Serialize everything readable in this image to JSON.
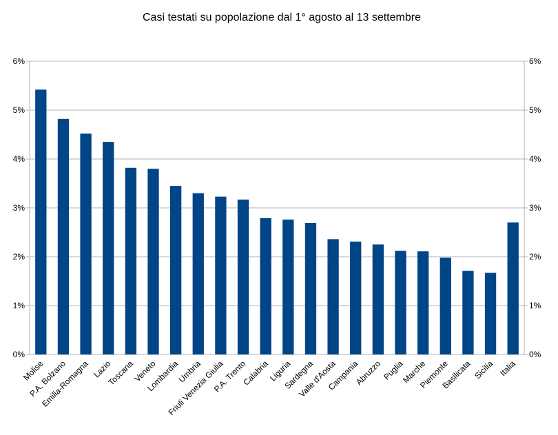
{
  "chart_data": {
    "type": "bar",
    "title": "Casi testati su popolazione dal 1° agosto al 13 settembre",
    "xlabel": "",
    "ylabel": "",
    "ylim": [
      0,
      6
    ],
    "y_tick_step": 1,
    "y_tick_suffix": "%",
    "secondary_y_axis": true,
    "grid": true,
    "legend": "none",
    "bar_color": "#004586",
    "categories": [
      "Molise",
      "P.A. Bolzano",
      "Emilia-Romagna",
      "Lazio",
      "Toscana",
      "Veneto",
      "Lombardia",
      "Umbria",
      "Friuli Venezia Giulia",
      "P.A. Trento",
      "Calabria",
      "Liguria",
      "Sardegna",
      "Valle d'Aosta",
      "Campania",
      "Abruzzo",
      "Puglia",
      "Marche",
      "Piemonte",
      "Basilicata",
      "Sicilia",
      "Italia"
    ],
    "values": [
      5.42,
      4.82,
      4.52,
      4.35,
      3.82,
      3.8,
      3.45,
      3.3,
      3.23,
      3.17,
      2.79,
      2.76,
      2.69,
      2.36,
      2.31,
      2.25,
      2.12,
      2.11,
      1.98,
      1.71,
      1.67,
      2.7
    ]
  }
}
